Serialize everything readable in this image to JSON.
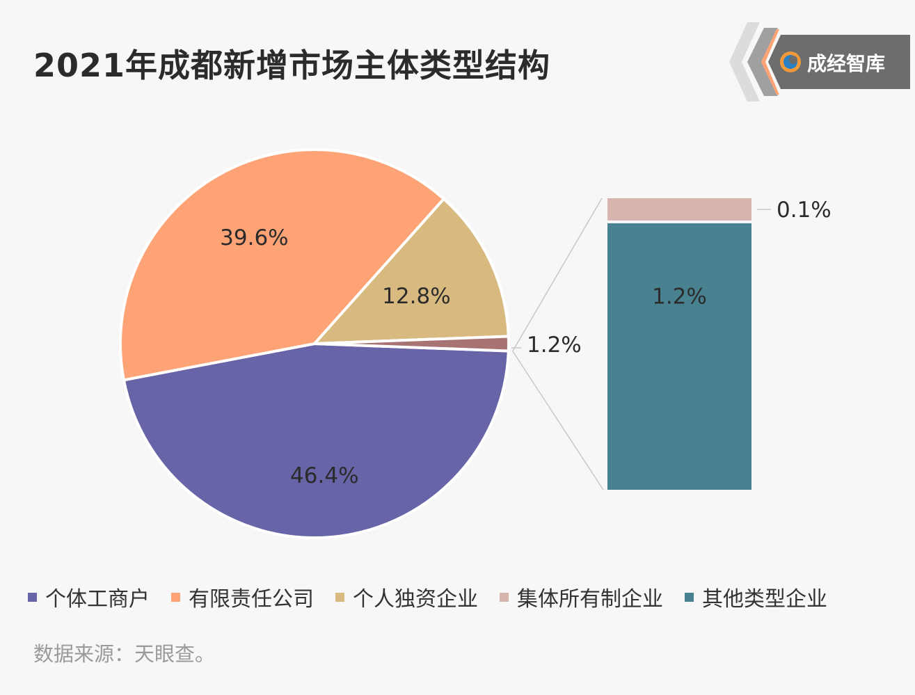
{
  "title": "2021年成都新增市场主体类型结构",
  "logo": {
    "text": "成经智库",
    "icon": "swirl-logo-icon"
  },
  "source": "数据来源：天眼查。",
  "colors": {
    "individual": "#6764a8",
    "limited": "#fda375",
    "sole": "#d8ba80",
    "collective": "#d7b4ae",
    "other": "#488290",
    "combined": "#a87473",
    "leader": "#c8c8c8"
  },
  "chart_data": {
    "type": "pie",
    "variant": "bar-of-pie",
    "categories": [
      "个体工商户",
      "有限责任公司",
      "个人独资企业",
      "集体所有制企业",
      "其他类型企业"
    ],
    "pie": [
      {
        "label": "46.4%",
        "value": 46.4,
        "category": "个体工商户"
      },
      {
        "label": "39.6%",
        "value": 39.6,
        "category": "有限责任公司"
      },
      {
        "label": "12.8%",
        "value": 12.8,
        "category": "个人独资企业"
      },
      {
        "label": "1.2%",
        "value": 1.2,
        "category": "其他"
      }
    ],
    "bar": [
      {
        "label": "0.1%",
        "value": 0.1,
        "category": "集体所有制企业"
      },
      {
        "label": "1.2%",
        "value": 1.2,
        "category": "其他类型企业"
      }
    ],
    "legend_position": "bottom"
  }
}
